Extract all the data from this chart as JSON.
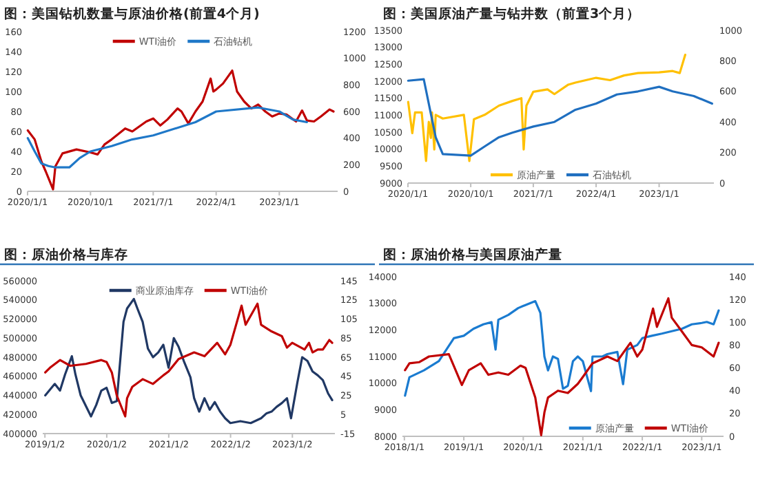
{
  "chart_data": [
    {
      "type": "line",
      "title": "图：美国钻机数量与原油价格(前置4个月)",
      "legend": "top",
      "xlim": [
        "2020-01-01",
        "2023-09-12"
      ],
      "xticks": [
        {
          "value": "2020-01-01",
          "label": "2020/1/1"
        },
        {
          "value": "2020-10-01",
          "label": "2020/10/1"
        },
        {
          "value": "2021-07-01",
          "label": "2021/7/1"
        },
        {
          "value": "2022-04-01",
          "label": "2022/4/1"
        },
        {
          "value": "2023-01-01",
          "label": "2023/1/1"
        }
      ],
      "ylim": [
        0,
        160
      ],
      "yticks": [
        0,
        20,
        40,
        60,
        80,
        100,
        120,
        140,
        160
      ],
      "y2lim": [
        0,
        1200
      ],
      "y2ticks": [
        0,
        200,
        400,
        600,
        800,
        1000,
        1200
      ],
      "series": [
        {
          "name": "WTI油价",
          "color": "#c00000",
          "x": [
            "2020-01-02",
            "2020-02-01",
            "2020-03-01",
            "2020-03-20",
            "2020-04-21",
            "2020-05-01",
            "2020-06-01",
            "2020-08-01",
            "2020-10-01",
            "2020-11-01",
            "2020-12-01",
            "2021-01-01",
            "2021-03-01",
            "2021-04-01",
            "2021-06-01",
            "2021-07-01",
            "2021-08-01",
            "2021-09-01",
            "2021-10-15",
            "2021-11-01",
            "2021-12-01",
            "2022-01-01",
            "2022-02-01",
            "2022-03-08",
            "2022-03-20",
            "2022-04-01",
            "2022-05-01",
            "2022-06-10",
            "2022-07-01",
            "2022-08-01",
            "2022-09-01",
            "2022-10-01",
            "2022-11-01",
            "2022-12-01",
            "2023-01-01",
            "2023-02-01",
            "2023-03-15",
            "2023-04-10",
            "2023-05-01",
            "2023-06-01",
            "2023-07-01",
            "2023-08-08",
            "2023-08-25"
          ],
          "values": [
            61,
            52,
            30,
            20,
            2,
            25,
            38,
            42,
            39,
            37,
            47,
            52,
            63,
            60,
            70,
            73,
            66,
            72,
            83,
            80,
            68,
            80,
            90,
            113,
            100,
            102,
            108,
            121,
            100,
            90,
            83,
            87,
            80,
            75,
            78,
            77,
            70,
            81,
            71,
            70,
            75,
            82,
            80
          ]
        },
        {
          "name": "石油钻机",
          "color": "#1f78c8",
          "axis": "y2",
          "x": [
            "2020-01-02",
            "2020-02-01",
            "2020-03-01",
            "2020-04-01",
            "2020-05-01",
            "2020-07-01",
            "2020-08-15",
            "2020-10-01",
            "2021-01-01",
            "2021-04-01",
            "2021-07-01",
            "2022-01-01",
            "2022-04-01",
            "2022-10-01",
            "2023-01-01",
            "2023-03-01",
            "2023-05-01"
          ],
          "values": [
            400,
            300,
            210,
            190,
            180,
            180,
            250,
            300,
            340,
            390,
            420,
            520,
            600,
            630,
            600,
            540,
            520
          ]
        }
      ]
    },
    {
      "type": "line",
      "title": "图：美国原油产量与钻井数（前置3个月）",
      "legend": "bottom",
      "xlim": [
        "2020-01-01",
        "2023-08-28"
      ],
      "xticks": [
        {
          "value": "2020-01-01",
          "label": "2020/1/1"
        },
        {
          "value": "2020-10-01",
          "label": "2020/10/1"
        },
        {
          "value": "2021-07-01",
          "label": "2021/7/1"
        },
        {
          "value": "2022-04-01",
          "label": "2022/4/1"
        },
        {
          "value": "2023-01-01",
          "label": "2023/1/1"
        }
      ],
      "ylim": [
        9000,
        13500
      ],
      "yticks": [
        9000,
        9500,
        10000,
        10500,
        11000,
        11500,
        12000,
        12500,
        13000,
        13500
      ],
      "y2lim": [
        0,
        1000
      ],
      "y2ticks": [
        0,
        200,
        400,
        600,
        800,
        1000
      ],
      "series": [
        {
          "name": "原油产量",
          "color": "#ffc000",
          "x": [
            "2020-01-02",
            "2020-01-20",
            "2020-02-01",
            "2020-03-01",
            "2020-03-20",
            "2020-04-01",
            "2020-04-10",
            "2020-04-15",
            "2020-04-25",
            "2020-05-01",
            "2020-06-01",
            "2020-09-01",
            "2020-09-25",
            "2020-10-15",
            "2020-12-01",
            "2021-02-01",
            "2021-04-01",
            "2021-05-10",
            "2021-05-20",
            "2021-06-01",
            "2021-07-01",
            "2021-09-01",
            "2021-10-01",
            "2021-12-01",
            "2022-01-01",
            "2022-04-01",
            "2022-06-01",
            "2022-08-01",
            "2022-10-01",
            "2023-01-01",
            "2023-03-01",
            "2023-04-01",
            "2023-04-25"
          ],
          "values": [
            11390,
            10470,
            11080,
            11080,
            9650,
            10800,
            10330,
            11080,
            9990,
            11010,
            10900,
            11010,
            9650,
            10880,
            11010,
            11280,
            11420,
            11500,
            9990,
            11280,
            11690,
            11760,
            11620,
            11900,
            11960,
            12100,
            12030,
            12170,
            12240,
            12260,
            12300,
            12240,
            12780
          ]
        },
        {
          "name": "石油钻机",
          "color": "#1f6fc0",
          "axis": "y2",
          "x": [
            "2020-01-02",
            "2020-03-10",
            "2020-05-01",
            "2020-06-01",
            "2020-10-01",
            "2020-12-01",
            "2021-02-01",
            "2021-04-01",
            "2021-07-01",
            "2021-10-01",
            "2022-01-01",
            "2022-04-01",
            "2022-07-01",
            "2022-10-01",
            "2023-01-01",
            "2023-03-01",
            "2023-05-01",
            "2023-06-01",
            "2023-08-20"
          ],
          "values": [
            670,
            680,
            300,
            190,
            180,
            240,
            300,
            330,
            370,
            400,
            480,
            520,
            580,
            600,
            630,
            600,
            580,
            570,
            520
          ]
        }
      ]
    },
    {
      "type": "line",
      "title": "图：原油价格与库存",
      "legend": "top",
      "xlim": [
        "2018-12-20",
        "2023-09-10"
      ],
      "xticks": [
        {
          "value": "2019-01-02",
          "label": "2019/1/2"
        },
        {
          "value": "2020-01-02",
          "label": "2020/1/2"
        },
        {
          "value": "2021-01-02",
          "label": "2021/1/2"
        },
        {
          "value": "2022-01-02",
          "label": "2022/1/2"
        },
        {
          "value": "2023-01-02",
          "label": "2023/1/2"
        }
      ],
      "ylim": [
        400000,
        560000
      ],
      "yticks": [
        400000,
        420000,
        440000,
        460000,
        480000,
        500000,
        520000,
        540000,
        560000
      ],
      "y2lim": [
        -15,
        145
      ],
      "y2ticks": [
        -15,
        5,
        25,
        45,
        65,
        85,
        105,
        125,
        145
      ],
      "series": [
        {
          "name": "商业原油库存",
          "color": "#203864",
          "x": [
            "2019-01-04",
            "2019-03-01",
            "2019-04-01",
            "2019-05-01",
            "2019-06-10",
            "2019-07-01",
            "2019-08-01",
            "2019-10-01",
            "2019-11-01",
            "2019-12-01",
            "2020-01-01",
            "2020-02-01",
            "2020-03-01",
            "2020-04-10",
            "2020-05-01",
            "2020-06-10",
            "2020-07-01",
            "2020-08-01",
            "2020-09-01",
            "2020-10-01",
            "2020-11-01",
            "2020-12-01",
            "2021-01-01",
            "2021-02-01",
            "2021-03-01",
            "2021-04-01",
            "2021-05-10",
            "2021-06-01",
            "2021-07-01",
            "2021-08-01",
            "2021-09-01",
            "2021-10-01",
            "2021-11-01",
            "2021-12-01",
            "2022-01-01",
            "2022-03-01",
            "2022-05-01",
            "2022-07-01",
            "2022-08-01",
            "2022-09-01",
            "2022-10-01",
            "2022-11-01",
            "2022-12-01",
            "2022-12-25",
            "2023-02-01",
            "2023-03-01",
            "2023-04-01",
            "2023-05-01",
            "2023-06-01",
            "2023-07-01",
            "2023-08-01",
            "2023-08-25"
          ],
          "values": [
            440000,
            452000,
            445000,
            462000,
            481000,
            462000,
            440000,
            418000,
            430000,
            445000,
            448000,
            432000,
            434000,
            517000,
            531000,
            541000,
            531000,
            517000,
            489000,
            480000,
            485000,
            493000,
            469000,
            500000,
            491000,
            476000,
            459000,
            437000,
            423000,
            437000,
            425000,
            433000,
            423000,
            416000,
            411000,
            413000,
            411000,
            416000,
            421000,
            423000,
            428000,
            432000,
            437000,
            416000,
            454000,
            480000,
            476000,
            465000,
            461000,
            456000,
            442000,
            435000
          ]
        },
        {
          "name": "WTI油价",
          "color": "#c00000",
          "axis": "y2",
          "x": [
            "2019-01-04",
            "2019-02-01",
            "2019-04-01",
            "2019-06-01",
            "2019-09-01",
            "2019-12-01",
            "2020-01-01",
            "2020-02-01",
            "2020-03-01",
            "2020-04-20",
            "2020-05-01",
            "2020-06-01",
            "2020-08-01",
            "2020-10-01",
            "2020-12-01",
            "2021-01-01",
            "2021-03-01",
            "2021-06-01",
            "2021-08-01",
            "2021-10-15",
            "2021-12-01",
            "2022-01-01",
            "2022-03-08",
            "2022-04-01",
            "2022-06-10",
            "2022-07-01",
            "2022-09-01",
            "2022-11-01",
            "2022-12-01",
            "2023-01-01",
            "2023-03-15",
            "2023-04-10",
            "2023-05-01",
            "2023-06-01",
            "2023-07-01",
            "2023-08-08",
            "2023-08-25"
          ],
          "values": [
            49,
            54,
            62,
            56,
            58,
            62,
            60,
            49,
            25,
            3,
            22,
            34,
            42,
            37,
            46,
            50,
            63,
            70,
            66,
            80,
            68,
            78,
            119,
            99,
            121,
            99,
            92,
            87,
            75,
            80,
            73,
            80,
            70,
            73,
            73,
            83,
            80
          ]
        }
      ]
    },
    {
      "type": "line",
      "title": "图：原油价格与美国原油产量",
      "legend": "bottom",
      "xlim": [
        "2017-12-20",
        "2023-05-15"
      ],
      "xticks": [
        {
          "value": "2018-01-01",
          "label": "2018/1/1"
        },
        {
          "value": "2019-01-01",
          "label": "2019/1/1"
        },
        {
          "value": "2020-01-01",
          "label": "2020/1/1"
        },
        {
          "value": "2021-01-01",
          "label": "2021/1/1"
        },
        {
          "value": "2022-01-01",
          "label": "2022/1/1"
        },
        {
          "value": "2023-01-01",
          "label": "2023/1/1"
        }
      ],
      "ylim": [
        8000,
        14000
      ],
      "yticks": [
        8000,
        9000,
        10000,
        11000,
        12000,
        13000,
        14000
      ],
      "y2lim": [
        0,
        140
      ],
      "y2ticks": [
        0,
        20,
        40,
        60,
        80,
        100,
        120,
        140
      ],
      "series": [
        {
          "name": "原油产量",
          "color": "#1a7bd0",
          "x": [
            "2018-01-05",
            "2018-02-01",
            "2018-05-01",
            "2018-08-01",
            "2018-11-01",
            "2019-01-01",
            "2019-03-01",
            "2019-05-01",
            "2019-06-20",
            "2019-07-15",
            "2019-08-01",
            "2019-10-01",
            "2019-12-01",
            "2020-01-01",
            "2020-03-15",
            "2020-04-15",
            "2020-05-10",
            "2020-06-01",
            "2020-07-01",
            "2020-08-01",
            "2020-09-01",
            "2020-10-01",
            "2020-11-01",
            "2020-12-01",
            "2021-01-01",
            "2021-02-20",
            "2021-03-01",
            "2021-05-01",
            "2021-06-01",
            "2021-08-01",
            "2021-09-05",
            "2021-10-01",
            "2021-12-01",
            "2022-01-01",
            "2022-03-01",
            "2022-05-01",
            "2022-07-01",
            "2022-09-01",
            "2022-11-01",
            "2023-01-01",
            "2023-02-01",
            "2023-03-15",
            "2023-04-15"
          ],
          "values": [
            9530,
            10220,
            10480,
            10830,
            11690,
            11780,
            12040,
            12210,
            12290,
            11260,
            12380,
            12560,
            12820,
            12900,
            13080,
            12640,
            11000,
            10480,
            11000,
            10910,
            9790,
            9900,
            10820,
            11000,
            10820,
            9700,
            11000,
            11000,
            11090,
            11170,
            9960,
            11260,
            11430,
            11690,
            11780,
            11860,
            11950,
            12040,
            12210,
            12260,
            12300,
            12210,
            12730
          ]
        },
        {
          "name": "WTI油价",
          "color": "#c00000",
          "axis": "y2",
          "x": [
            "2018-01-05",
            "2018-02-01",
            "2018-04-01",
            "2018-06-01",
            "2018-10-01",
            "2018-12-20",
            "2019-02-01",
            "2019-04-15",
            "2019-06-01",
            "2019-08-01",
            "2019-10-01",
            "2019-12-15",
            "2020-01-15",
            "2020-03-15",
            "2020-04-20",
            "2020-05-10",
            "2020-06-01",
            "2020-08-01",
            "2020-10-01",
            "2020-12-01",
            "2021-01-01",
            "2021-03-01",
            "2021-06-01",
            "2021-08-01",
            "2021-10-20",
            "2021-12-01",
            "2022-01-01",
            "2022-03-08",
            "2022-04-01",
            "2022-06-10",
            "2022-07-01",
            "2022-09-01",
            "2022-11-01",
            "2023-01-01",
            "2023-03-15",
            "2023-04-15"
          ],
          "values": [
            58,
            64,
            65,
            70,
            72,
            45,
            58,
            64,
            54,
            56,
            54,
            62,
            60,
            34,
            1,
            21,
            34,
            40,
            38,
            46,
            52,
            64,
            70,
            66,
            82,
            70,
            76,
            112,
            96,
            121,
            104,
            92,
            80,
            78,
            70,
            82
          ]
        }
      ]
    }
  ]
}
